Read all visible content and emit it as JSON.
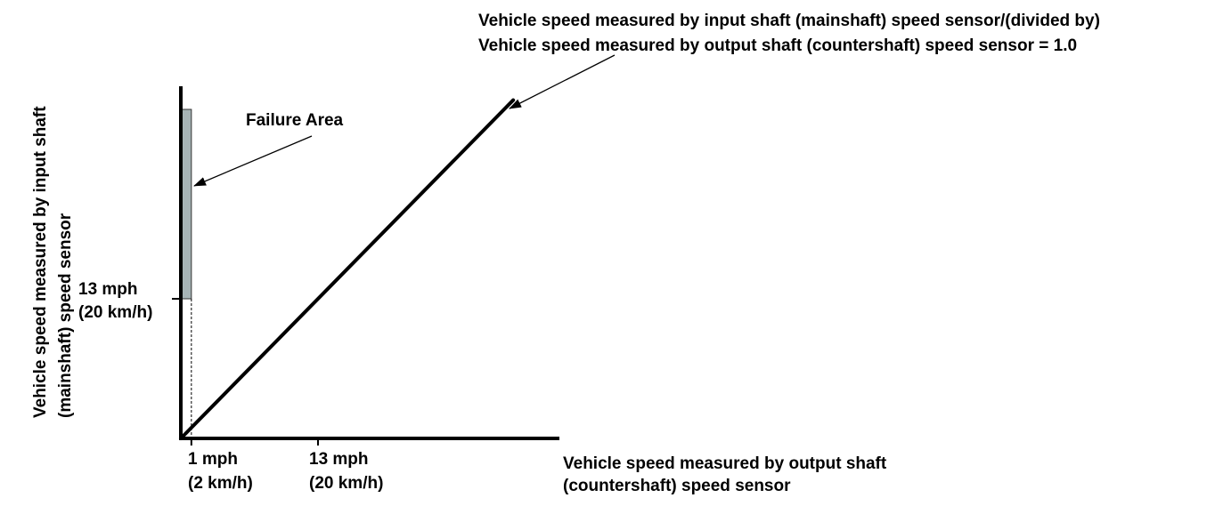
{
  "colors": {
    "axis": "#000000",
    "ratio_line": "#000000",
    "failure_fill": "#a7b4b6",
    "failure_stroke": "#333333"
  },
  "top_annotation": {
    "line1": "Vehicle speed measured by input shaft (mainshaft) speed sensor/(divided by)",
    "line2": "Vehicle speed measured by output shaft (countershaft) speed sensor = 1.0"
  },
  "failure_area": {
    "label": "Failure Area",
    "x_max_value": 1,
    "y_min_value": 13
  },
  "y_axis": {
    "title_line1": "Vehicle speed measured by input shaft",
    "title_line2": "(mainshaft) speed sensor",
    "tick": {
      "value": 13,
      "line1": "13 mph",
      "line2": "(20 km/h)"
    }
  },
  "x_axis": {
    "title_line1": "Vehicle speed measured by output shaft",
    "title_line2": "(countershaft) speed sensor",
    "ticks": [
      {
        "value": 1,
        "line1": "1 mph",
        "line2": "(2 km/h)"
      },
      {
        "value": 13,
        "line1": "13 mph",
        "line2": "(20 km/h)"
      }
    ]
  },
  "ratio_line": {
    "ratio": 1.0,
    "from_value": 0,
    "to_value": 31.5
  }
}
